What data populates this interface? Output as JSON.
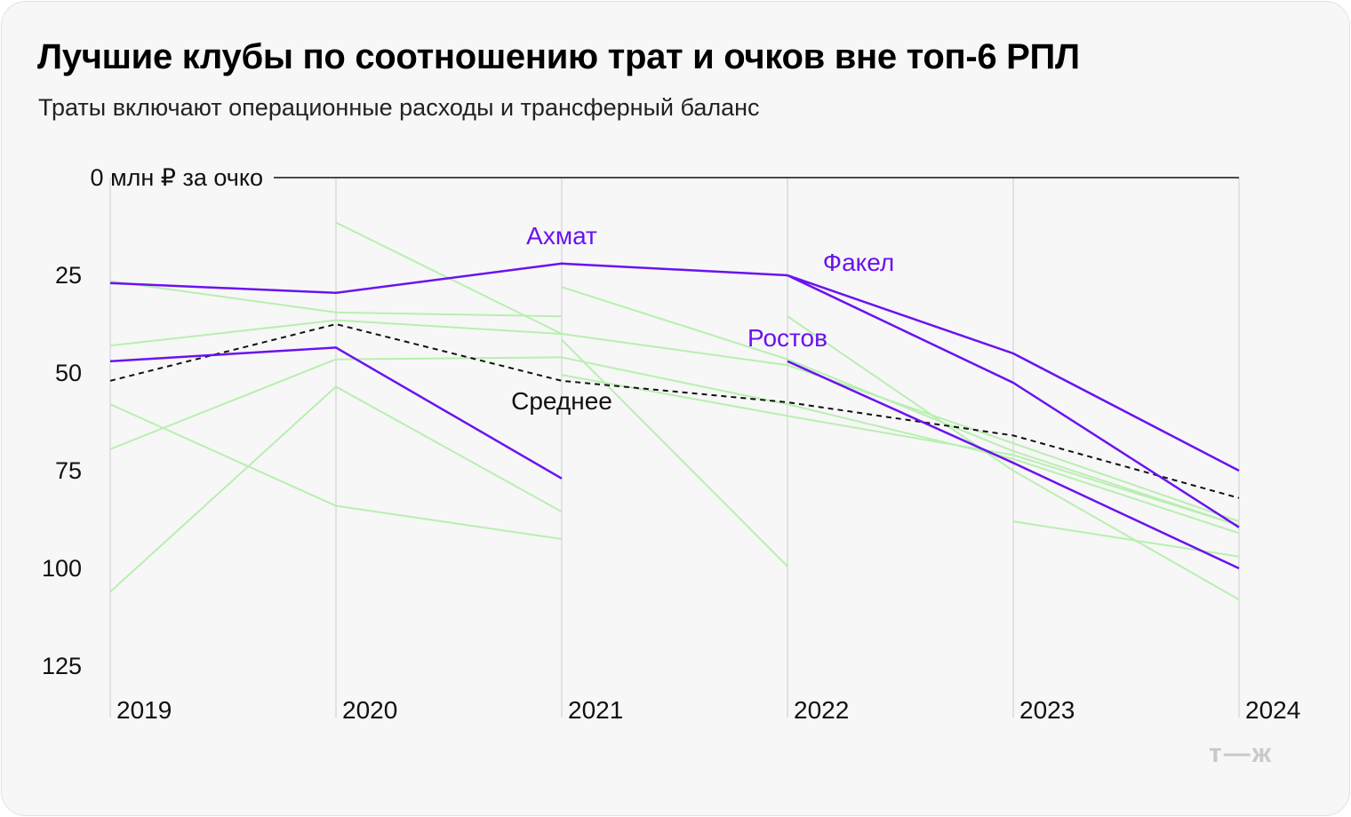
{
  "header": {
    "title": "Лучшие клубы по соотношению трат и очков вне топ-6 РПЛ",
    "subtitle": "Траты включают операционные расходы и трансферный баланс"
  },
  "logo": "т—ж",
  "colors": {
    "highlight": "#6a12f0",
    "background": "#f7f7f7",
    "other_series": "#b8efb0",
    "average": "#000000"
  },
  "chart_data": {
    "type": "line",
    "title": "Лучшие клубы по соотношению трат и очков вне топ-6 РПЛ",
    "subtitle": "Траты включают операционные расходы и трансферный баланс",
    "x": [
      "2019",
      "2020",
      "2021",
      "2022",
      "2023",
      "2024"
    ],
    "y_axis": {
      "reversed": true,
      "ylim": [
        0,
        130
      ],
      "ticks": [
        0,
        25,
        50,
        75,
        100,
        125
      ],
      "tick_labels": [
        "0 млн ₽ за очко",
        "25",
        "50",
        "75",
        "100",
        "125"
      ]
    },
    "grid": "vertical",
    "series": [
      {
        "name": "Ахмат",
        "highlight": true,
        "label_at": "2021",
        "values": [
          27,
          29.5,
          22,
          25,
          null,
          null
        ]
      },
      {
        "name": "Факел",
        "highlight": true,
        "label_at": "2022",
        "values": [
          null,
          null,
          null,
          25,
          45,
          75
        ]
      },
      {
        "name": "Ростов",
        "highlight": true,
        "label_at": "2022",
        "values": [
          null,
          null,
          null,
          47,
          73,
          100
        ]
      },
      {
        "name": "",
        "highlight": true,
        "values": [
          47,
          43.5,
          77,
          null,
          null,
          null
        ]
      },
      {
        "name": "",
        "highlight": true,
        "values": [
          null,
          null,
          null,
          25,
          52.5,
          89.5
        ]
      },
      {
        "name": "Среднее",
        "dashed": true,
        "label_at": "2021",
        "values": [
          52,
          37.5,
          52,
          57.5,
          66,
          82
        ]
      },
      {
        "name": "",
        "highlight": false,
        "values": [
          null,
          11.5,
          40,
          null,
          null,
          null
        ]
      },
      {
        "name": "",
        "highlight": false,
        "values": [
          26.5,
          34.5,
          35.5,
          null,
          null,
          null
        ]
      },
      {
        "name": "",
        "highlight": false,
        "values": [
          43,
          36.5,
          40,
          48,
          68,
          88
        ]
      },
      {
        "name": "",
        "highlight": false,
        "values": [
          null,
          46.5,
          46,
          58,
          72,
          91
        ]
      },
      {
        "name": "",
        "highlight": false,
        "values": [
          58,
          84,
          92.5,
          null,
          null,
          null
        ]
      },
      {
        "name": "",
        "highlight": false,
        "values": [
          69.5,
          46.5,
          null,
          null,
          null,
          null
        ]
      },
      {
        "name": "",
        "highlight": false,
        "values": [
          106,
          53.5,
          85.5,
          null,
          null,
          null
        ]
      },
      {
        "name": "",
        "highlight": false,
        "values": [
          null,
          null,
          28,
          46.5,
          70,
          89
        ]
      },
      {
        "name": "",
        "highlight": false,
        "values": [
          null,
          null,
          41.5,
          99.5,
          null,
          null
        ]
      },
      {
        "name": "",
        "highlight": false,
        "values": [
          null,
          null,
          50.5,
          61,
          71,
          89
        ]
      },
      {
        "name": "",
        "highlight": false,
        "values": [
          null,
          null,
          null,
          35.5,
          75,
          108
        ]
      },
      {
        "name": "",
        "highlight": false,
        "values": [
          null,
          null,
          null,
          null,
          88,
          97
        ]
      }
    ]
  }
}
